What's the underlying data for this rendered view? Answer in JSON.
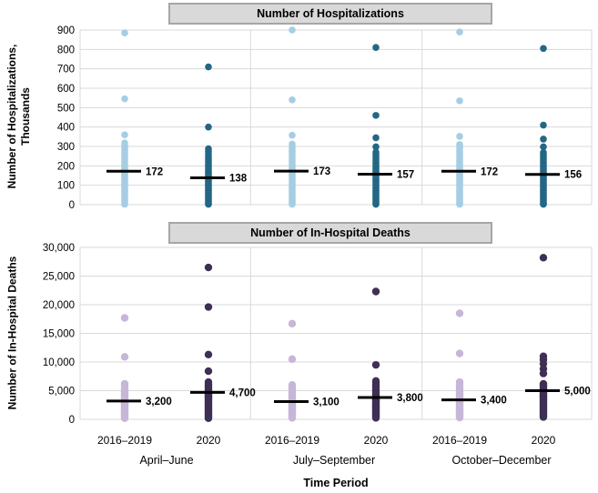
{
  "figure": {
    "x_axis_title": "Time Period",
    "cohort_labels": [
      "2016–2019",
      "2020",
      "2016–2019",
      "2020",
      "2016–2019",
      "2020"
    ],
    "period_labels": [
      "April–June",
      "July–September",
      "October–December"
    ]
  },
  "colors": {
    "grid": "#d9d9d9",
    "median_line": "#000000",
    "title_bar_bg": "#d9d9d9",
    "title_bar_border": "#a6a6a6",
    "hospitalizations_2016_2019": "#a5cee4",
    "hospitalizations_2020": "#236785",
    "deaths_2016_2019": "#c6b6d8",
    "deaths_2020": "#3e2f54"
  },
  "chart_data": [
    {
      "type": "scatter",
      "subtype": "strip-plot",
      "title": "Number of Hospitalizations",
      "ylabel": "Number of Hospitalizations, Thousands",
      "ylabel_lines": [
        "Number of Hospitalizations,",
        "Thousands"
      ],
      "xlabel": "Time Period",
      "ylim": [
        0,
        900
      ],
      "yticks": [
        0,
        100,
        200,
        300,
        400,
        500,
        600,
        700,
        800,
        900
      ],
      "ytick_labels": [
        "0",
        "100",
        "200",
        "300",
        "400",
        "500",
        "600",
        "700",
        "800",
        "900"
      ],
      "grid": true,
      "groups": [
        {
          "period": "April–June",
          "cohort": "2016–2019",
          "color": "#a5cee4",
          "median": 172,
          "median_label": "172",
          "values": [
            885,
            545,
            360,
            318,
            305,
            292,
            280,
            268,
            256,
            245,
            234,
            223,
            213,
            203,
            194,
            186,
            178,
            172,
            166,
            158,
            150,
            142,
            134,
            126,
            118,
            110,
            102,
            94,
            86,
            78,
            70,
            62,
            54,
            46,
            38,
            30,
            22,
            14,
            7,
            2
          ]
        },
        {
          "period": "April–June",
          "cohort": "2020",
          "color": "#236785",
          "median": 138,
          "median_label": "138",
          "values": [
            710,
            400,
            288,
            276,
            264,
            252,
            241,
            230,
            219,
            208,
            198,
            188,
            178,
            169,
            160,
            152,
            145,
            138,
            131,
            124,
            117,
            110,
            103,
            96,
            89,
            82,
            75,
            68,
            61,
            54,
            47,
            40,
            33,
            26,
            19,
            12,
            6,
            2
          ]
        },
        {
          "period": "July–September",
          "cohort": "2016–2019",
          "color": "#a5cee4",
          "median": 173,
          "median_label": "173",
          "values": [
            900,
            540,
            358,
            312,
            299,
            287,
            275,
            263,
            252,
            241,
            230,
            220,
            210,
            200,
            191,
            183,
            177,
            173,
            167,
            159,
            151,
            143,
            135,
            127,
            119,
            111,
            103,
            95,
            87,
            79,
            71,
            63,
            55,
            47,
            39,
            31,
            23,
            15,
            8,
            2
          ]
        },
        {
          "period": "July–September",
          "cohort": "2020",
          "color": "#236785",
          "median": 157,
          "median_label": "157",
          "values": [
            810,
            460,
            345,
            298,
            270,
            258,
            247,
            236,
            225,
            215,
            205,
            195,
            186,
            177,
            169,
            161,
            157,
            150,
            142,
            134,
            126,
            118,
            110,
            102,
            94,
            86,
            78,
            70,
            62,
            54,
            46,
            38,
            30,
            22,
            14,
            7,
            2
          ]
        },
        {
          "period": "October–December",
          "cohort": "2016–2019",
          "color": "#a5cee4",
          "median": 172,
          "median_label": "172",
          "values": [
            890,
            535,
            352,
            310,
            297,
            285,
            273,
            261,
            250,
            239,
            229,
            219,
            209,
            199,
            190,
            182,
            176,
            172,
            165,
            157,
            149,
            141,
            133,
            125,
            117,
            109,
            101,
            93,
            85,
            77,
            69,
            61,
            53,
            45,
            37,
            29,
            21,
            13,
            6,
            2
          ]
        },
        {
          "period": "October–December",
          "cohort": "2020",
          "color": "#236785",
          "median": 156,
          "median_label": "156",
          "values": [
            805,
            410,
            338,
            298,
            268,
            257,
            246,
            235,
            225,
            215,
            205,
            195,
            185,
            176,
            168,
            160,
            156,
            149,
            141,
            133,
            125,
            117,
            109,
            101,
            93,
            85,
            77,
            69,
            61,
            53,
            45,
            37,
            29,
            21,
            13,
            6,
            2
          ]
        }
      ]
    },
    {
      "type": "scatter",
      "subtype": "strip-plot",
      "title": "Number of In-Hospital Deaths",
      "ylabel": "Number of In-Hospital Deaths",
      "ylabel_lines": [
        "Number of In-Hospital Deaths"
      ],
      "xlabel": "Time Period",
      "ylim": [
        0,
        30000
      ],
      "yticks": [
        0,
        5000,
        10000,
        15000,
        20000,
        25000,
        30000
      ],
      "ytick_labels": [
        "0",
        "5,000",
        "10,000",
        "15,000",
        "20,000",
        "25,000",
        "30,000"
      ],
      "grid": true,
      "groups": [
        {
          "period": "April–June",
          "cohort": "2016–2019",
          "color": "#c6b6d8",
          "median": 3200,
          "median_label": "3,200",
          "values": [
            17700,
            10900,
            6200,
            5850,
            5500,
            5200,
            4900,
            4600,
            4350,
            4100,
            3900,
            3700,
            3500,
            3300,
            3200,
            3050,
            2900,
            2750,
            2600,
            2450,
            2300,
            2150,
            2000,
            1850,
            1700,
            1550,
            1400,
            1250,
            1100,
            950,
            800,
            650,
            500,
            350,
            200
          ]
        },
        {
          "period": "April–June",
          "cohort": "2020",
          "color": "#3e2f54",
          "median": 4700,
          "median_label": "4,700",
          "values": [
            26500,
            19600,
            11300,
            8400,
            6500,
            6150,
            5850,
            5600,
            5350,
            5150,
            4950,
            4800,
            4700,
            4550,
            4400,
            4250,
            4100,
            3950,
            3800,
            3650,
            3500,
            3350,
            3200,
            3000,
            2800,
            2600,
            2400,
            2200,
            2000,
            1800,
            1600,
            1400,
            1200,
            1000,
            800,
            600,
            400,
            200
          ]
        },
        {
          "period": "July–September",
          "cohort": "2016–2019",
          "color": "#c6b6d8",
          "median": 3100,
          "median_label": "3,100",
          "values": [
            16700,
            10500,
            6000,
            5650,
            5300,
            5000,
            4700,
            4450,
            4200,
            3950,
            3750,
            3550,
            3350,
            3200,
            3100,
            2950,
            2800,
            2650,
            2500,
            2350,
            2200,
            2050,
            1900,
            1750,
            1600,
            1450,
            1300,
            1150,
            1000,
            850,
            700,
            550,
            400,
            250
          ]
        },
        {
          "period": "July–September",
          "cohort": "2020",
          "color": "#3e2f54",
          "median": 3800,
          "median_label": "3,800",
          "values": [
            22300,
            9500,
            6700,
            6350,
            6000,
            5700,
            5400,
            5150,
            4900,
            4650,
            4400,
            4200,
            4000,
            3900,
            3800,
            3700,
            3550,
            3400,
            3250,
            3100,
            2950,
            2800,
            2650,
            2500,
            2350,
            2200,
            2050,
            1900,
            1750,
            1600,
            1450,
            1300,
            1150,
            1000,
            850,
            700,
            550,
            400,
            250
          ]
        },
        {
          "period": "October–December",
          "cohort": "2016–2019",
          "color": "#c6b6d8",
          "median": 3400,
          "median_label": "3,400",
          "values": [
            18500,
            11500,
            6500,
            6100,
            5750,
            5400,
            5100,
            4800,
            4550,
            4300,
            4100,
            3900,
            3700,
            3550,
            3400,
            3300,
            3150,
            3000,
            2850,
            2700,
            2550,
            2400,
            2250,
            2100,
            1950,
            1800,
            1650,
            1500,
            1350,
            1200,
            1050,
            900,
            750,
            600,
            450,
            300
          ]
        },
        {
          "period": "October–December",
          "cohort": "2020",
          "color": "#3e2f54",
          "median": 5000,
          "median_label": "5,000",
          "values": [
            28200,
            11000,
            10400,
            9700,
            8800,
            8000,
            6200,
            5950,
            5750,
            5550,
            5350,
            5150,
            5000,
            4850,
            4700,
            4550,
            4400,
            4250,
            4100,
            3950,
            3800,
            3650,
            3500,
            3350,
            3200,
            3000,
            2800,
            2600,
            2400,
            2200,
            2000,
            1800,
            1600,
            1400,
            1200,
            1000,
            800,
            600,
            400
          ]
        }
      ]
    }
  ]
}
